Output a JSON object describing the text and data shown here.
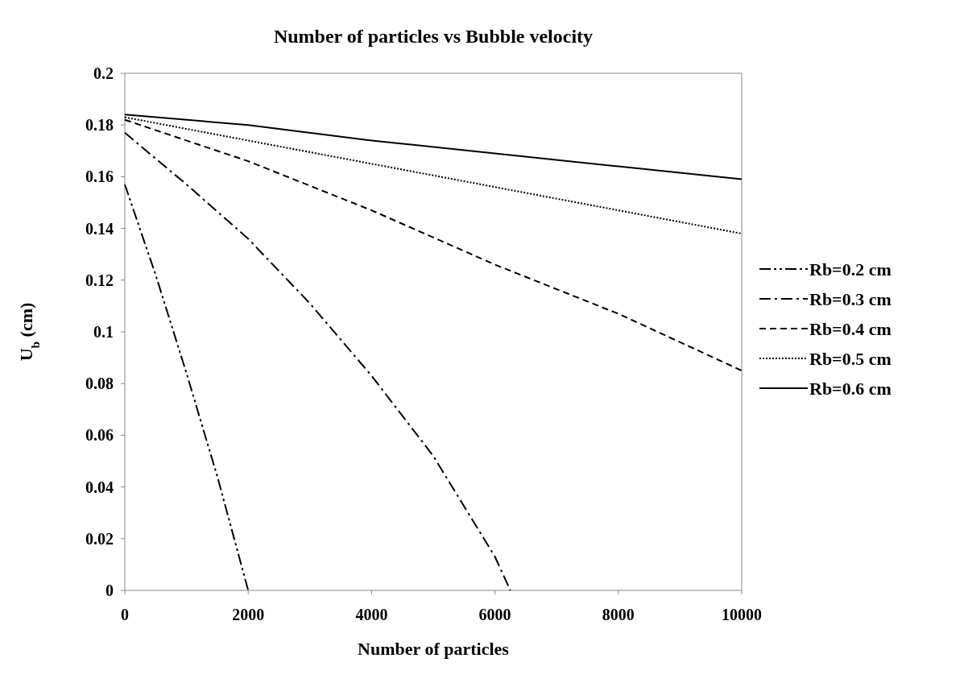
{
  "chart_data": {
    "type": "line",
    "title": "Number of particles vs Bubble velocity",
    "xlabel": "Number of particles",
    "ylabel": "U$_{b}$ (cm)",
    "xlim": [
      0,
      10000
    ],
    "xticks": [
      0,
      2000,
      4000,
      6000,
      8000,
      10000
    ],
    "ylim": [
      0,
      0.2
    ],
    "yticks": [
      0,
      0.02,
      0.04,
      0.06,
      0.08,
      0.1,
      0.12,
      0.14,
      0.16,
      0.18,
      0.2
    ],
    "grid": false,
    "legend": "right",
    "marker": "none",
    "series": [
      {
        "name": "Rb=0.2 cm",
        "color": "#000000",
        "line_style": "dashdotdot",
        "x": [
          0,
          500,
          1000,
          1500,
          2000
        ],
        "values": [
          0.157,
          0.122,
          0.084,
          0.044,
          0
        ]
      },
      {
        "name": "Rb=0.3 cm",
        "color": "#000000",
        "line_style": "dashdot",
        "x": [
          0,
          1000,
          2000,
          3000,
          4000,
          5000,
          6000,
          6250
        ],
        "values": [
          0.177,
          0.157,
          0.136,
          0.111,
          0.083,
          0.052,
          0.013,
          0
        ]
      },
      {
        "name": "Rb=0.4 cm",
        "color": "#000000",
        "line_style": "dashed",
        "x": [
          0,
          2000,
          4000,
          6000,
          8000,
          10000
        ],
        "values": [
          0.182,
          0.166,
          0.147,
          0.126,
          0.107,
          0.085
        ]
      },
      {
        "name": "Rb=0.5 cm",
        "color": "#000000",
        "line_style": "dotted",
        "x": [
          0,
          2000,
          4000,
          6000,
          8000,
          10000
        ],
        "values": [
          0.183,
          0.174,
          0.165,
          0.156,
          0.147,
          0.138
        ]
      },
      {
        "name": "Rb=0.6 cm",
        "color": "#000000",
        "line_style": "solid",
        "x": [
          0,
          2000,
          4000,
          6000,
          8000,
          10000
        ],
        "values": [
          0.184,
          0.18,
          0.174,
          0.169,
          0.164,
          0.159
        ]
      }
    ]
  }
}
